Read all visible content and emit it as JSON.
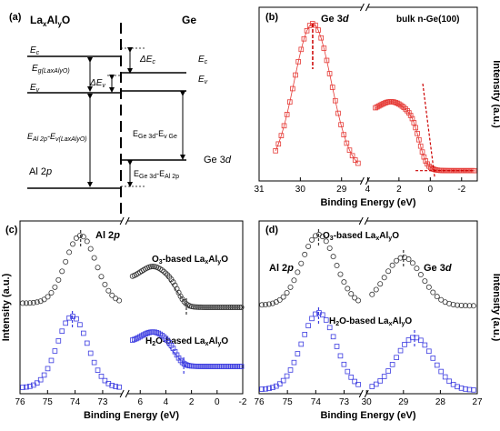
{
  "figure": {
    "panel_a": {
      "label": "(a)",
      "left_header": "LaxAlyO",
      "right_header": "Ge",
      "labels": {
        "Ec_left": "Ec",
        "Ev_left": "Ev",
        "Eg": "Eg(LaxAlyO)",
        "dEv": "ΔEv",
        "dEc": "ΔEc",
        "Ec_right": "Ec",
        "Ev_right": "Ev",
        "AlEv": "EAl 2p-Ev(LaxAlyO)",
        "GeEv": "EGe 3d-Ev Ge",
        "Al2p": "Al 2p",
        "Ge3d": "Ge 3d",
        "GeAl": "EGe 3d-EAl 2p"
      }
    },
    "shared": {
      "xlabel": "Binding Energy (eV)",
      "ylabel": "Intensity (a.u.)"
    }
  },
  "chart_data": [
    {
      "panel": "(b)",
      "type": "scatter",
      "title": "bulk n-Ge(100)",
      "xlabel": "Binding Energy (eV)",
      "ylabel": "Intensity (a.u.)",
      "annotation": "Ge 3d",
      "color": "#e53935",
      "x_segments": [
        {
          "xlim": [
            31,
            28.5
          ],
          "ticks": [
            "31",
            "30",
            "29"
          ]
        },
        {
          "xlim": [
            4,
            -3
          ],
          "ticks": [
            "4",
            "2",
            "0",
            "-2"
          ]
        }
      ],
      "series": [
        {
          "segment": 0,
          "peak_x": 29.7,
          "peak_y": 1.0,
          "sigma": 0.45,
          "floor": 0.02,
          "x_start": 30.6,
          "x_end": 28.6
        },
        {
          "segment": 1,
          "valence_top": 0.48,
          "edge_x": -0.1,
          "floor": 0.02,
          "x_start": 3.5,
          "x_end": -2.8
        }
      ],
      "markers": {
        "peak_line_x": 29.7,
        "vbm_x": -0.1
      }
    },
    {
      "panel": "(c)",
      "type": "scatter",
      "xlabel": "Binding Energy (eV)",
      "ylabel": "Intensity (a.u.)",
      "annotation": "Al 2p",
      "x_segments": [
        {
          "xlim": [
            76,
            72.3
          ],
          "ticks": [
            "76",
            "75",
            "74",
            "73"
          ]
        },
        {
          "xlim": [
            7,
            -2
          ],
          "ticks": [
            "6",
            "4",
            "2",
            "0",
            "-2"
          ]
        }
      ],
      "series": [
        {
          "name": "O3-based LaxAlyO",
          "color": "#333333",
          "marker": "circle",
          "core_peak": 73.8,
          "edge_x": 2.4
        },
        {
          "name": "H2O-based LaxAlyO",
          "color": "#3b3be0",
          "marker": "square",
          "core_peak": 74.1,
          "edge_x": 2.6
        }
      ]
    },
    {
      "panel": "(d)",
      "type": "scatter",
      "xlabel": "Binding Energy (eV)",
      "ylabel": "Intensity (a.u.)",
      "annotations": [
        "Al 2p",
        "Ge 3d"
      ],
      "x_segments": [
        {
          "xlim": [
            76,
            72.4
          ],
          "ticks": [
            "76",
            "75",
            "74",
            "73"
          ]
        },
        {
          "xlim": [
            30,
            27
          ],
          "ticks": [
            "30",
            "29",
            "28",
            "27"
          ]
        }
      ],
      "series": [
        {
          "name": "O3-based LaxAlyO",
          "color": "#333333",
          "marker": "circle",
          "al_peak": 73.9,
          "ge_peak": 29.0
        },
        {
          "name": "H2O-based LaxAlyO",
          "color": "#3b3be0",
          "marker": "square",
          "al_peak": 73.9,
          "ge_peak": 28.7
        }
      ]
    }
  ]
}
